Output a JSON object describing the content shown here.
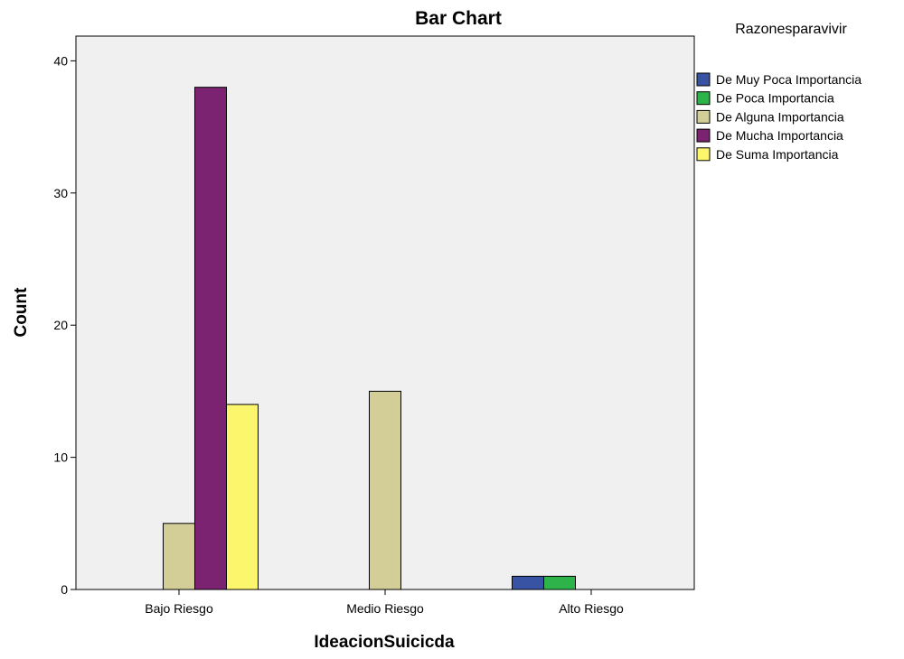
{
  "chart_data": {
    "type": "bar",
    "title": "Bar Chart",
    "xlabel": "IdeacionSuicicda",
    "ylabel": "Count",
    "categories": [
      "Bajo Riesgo",
      "Medio Riesgo",
      "Alto Riesgo"
    ],
    "ylim": [
      0,
      42
    ],
    "yticks": [
      0,
      10,
      20,
      30,
      40
    ],
    "grid": false,
    "legend_title": "Razonesparavivir",
    "legend_position": "right",
    "series": [
      {
        "name": "De Muy Poca Importancia",
        "color": "#3953a4",
        "values": [
          0,
          0,
          1
        ]
      },
      {
        "name": "De Poca Importancia",
        "color": "#2db34a",
        "values": [
          0,
          0,
          1
        ]
      },
      {
        "name": "De Alguna Importancia",
        "color": "#d3ce97",
        "values": [
          5,
          15,
          0
        ]
      },
      {
        "name": "De Mucha Importancia",
        "color": "#7b2370",
        "values": [
          38,
          0,
          0
        ]
      },
      {
        "name": "De Suma Importancia",
        "color": "#fbf66c",
        "values": [
          14,
          0,
          0
        ]
      }
    ],
    "plot_background": "#f0f0f0"
  }
}
